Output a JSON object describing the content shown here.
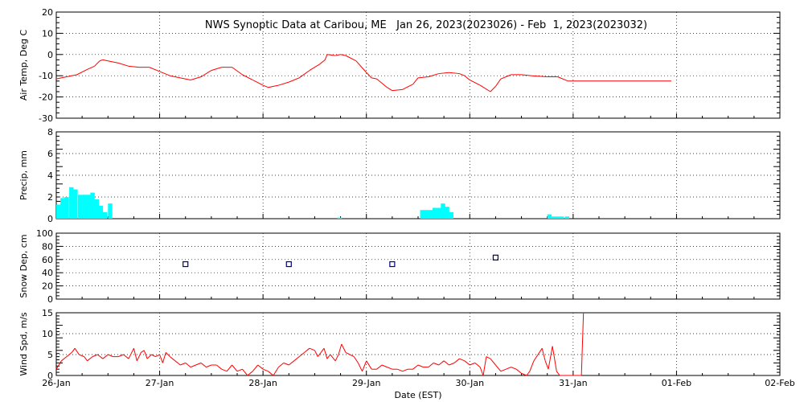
{
  "title": "NWS Synoptic Data at Caribou, ME   Jan 26, 2023(2023026) - Feb  1, 2023(2023032)",
  "xlabel": "Date (EST)",
  "x_ticks": [
    "26-Jan",
    "27-Jan",
    "28-Jan",
    "29-Jan",
    "30-Jan",
    "31-Jan",
    "01-Feb",
    "02-Feb"
  ],
  "colors": {
    "temp": "#ff0000",
    "precip": "#00ffff",
    "snow": "#000080",
    "wind": "#ff0000",
    "grid": "#000000"
  },
  "chart_data": [
    {
      "type": "line",
      "ylabel": "Air Temp, Deg C",
      "ylim": [
        -30,
        20
      ],
      "y_ticks": [
        20,
        10,
        0,
        -10,
        -20,
        -30
      ],
      "x_unit": "days since 26-Jan 00:00 EST",
      "points": [
        [
          0.0,
          -11.5
        ],
        [
          0.1,
          -10.5
        ],
        [
          0.2,
          -9.5
        ],
        [
          0.3,
          -7.0
        ],
        [
          0.37,
          -5.5
        ],
        [
          0.42,
          -3.0
        ],
        [
          0.45,
          -2.5
        ],
        [
          0.5,
          -3.0
        ],
        [
          0.6,
          -4.0
        ],
        [
          0.7,
          -5.5
        ],
        [
          0.8,
          -6.0
        ],
        [
          0.9,
          -6.0
        ],
        [
          1.0,
          -8.0
        ],
        [
          1.1,
          -10.0
        ],
        [
          1.2,
          -11.0
        ],
        [
          1.3,
          -12.0
        ],
        [
          1.4,
          -10.5
        ],
        [
          1.5,
          -7.5
        ],
        [
          1.6,
          -6.0
        ],
        [
          1.7,
          -6.0
        ],
        [
          1.8,
          -9.5
        ],
        [
          1.9,
          -12.0
        ],
        [
          2.0,
          -14.5
        ],
        [
          2.05,
          -15.5
        ],
        [
          2.1,
          -15.0
        ],
        [
          2.15,
          -14.5
        ],
        [
          2.25,
          -13.0
        ],
        [
          2.35,
          -11.0
        ],
        [
          2.45,
          -7.5
        ],
        [
          2.55,
          -4.5
        ],
        [
          2.6,
          -2.5
        ],
        [
          2.62,
          0.0
        ],
        [
          2.7,
          -0.5
        ],
        [
          2.75,
          0.0
        ],
        [
          2.8,
          -0.5
        ],
        [
          2.9,
          -3.0
        ],
        [
          3.0,
          -8.5
        ],
        [
          3.05,
          -11.0
        ],
        [
          3.1,
          -11.5
        ],
        [
          3.2,
          -15.5
        ],
        [
          3.25,
          -17.0
        ],
        [
          3.35,
          -16.5
        ],
        [
          3.45,
          -14.0
        ],
        [
          3.5,
          -11.0
        ],
        [
          3.6,
          -10.5
        ],
        [
          3.7,
          -9.0
        ],
        [
          3.8,
          -8.5
        ],
        [
          3.9,
          -9.0
        ],
        [
          3.95,
          -10.0
        ],
        [
          4.0,
          -12.0
        ],
        [
          4.1,
          -14.5
        ],
        [
          4.2,
          -17.5
        ],
        [
          4.25,
          -15.0
        ],
        [
          4.3,
          -11.5
        ],
        [
          4.4,
          -9.5
        ],
        [
          4.5,
          -9.5
        ],
        [
          4.6,
          -10.0
        ],
        [
          4.75,
          -10.5
        ],
        [
          4.85,
          -10.5
        ],
        [
          4.95,
          -12.5
        ],
        [
          5.95,
          -12.5
        ]
      ]
    },
    {
      "type": "bar",
      "ylabel": "Precip, mm",
      "ylim": [
        0,
        8
      ],
      "y_ticks": [
        8,
        6,
        4,
        2,
        0
      ],
      "x_unit": "days since 26-Jan 00:00 EST",
      "bar_width_days": 0.042,
      "bars": [
        [
          0.0,
          1.3
        ],
        [
          0.04,
          1.9
        ],
        [
          0.08,
          2.0
        ],
        [
          0.125,
          2.9
        ],
        [
          0.165,
          2.7
        ],
        [
          0.21,
          2.2
        ],
        [
          0.25,
          2.2
        ],
        [
          0.29,
          2.2
        ],
        [
          0.33,
          2.4
        ],
        [
          0.37,
          1.8
        ],
        [
          0.41,
          1.2
        ],
        [
          0.45,
          0.6
        ],
        [
          0.5,
          1.4
        ],
        [
          2.72,
          0.1
        ],
        [
          3.52,
          0.8
        ],
        [
          3.56,
          0.8
        ],
        [
          3.6,
          0.8
        ],
        [
          3.64,
          1.0
        ],
        [
          3.68,
          1.0
        ],
        [
          3.72,
          1.4
        ],
        [
          3.76,
          1.1
        ],
        [
          3.8,
          0.6
        ],
        [
          4.75,
          0.4
        ],
        [
          4.79,
          0.2
        ],
        [
          4.83,
          0.2
        ],
        [
          4.87,
          0.2
        ],
        [
          4.92,
          0.2
        ]
      ]
    },
    {
      "type": "scatter",
      "ylabel": "Snow Dep, cm",
      "ylim": [
        0,
        100
      ],
      "y_ticks": [
        100,
        80,
        60,
        40,
        20,
        0
      ],
      "x_unit": "days since 26-Jan 00:00 EST",
      "points": [
        [
          1.25,
          53
        ],
        [
          2.25,
          53
        ],
        [
          3.25,
          53
        ],
        [
          4.25,
          63
        ]
      ]
    },
    {
      "type": "line",
      "ylabel": "Wind Spd, m/s",
      "ylim": [
        0,
        15
      ],
      "y_ticks": [
        15,
        10,
        5,
        0
      ],
      "x_unit": "days since 26-Jan 00:00 EST",
      "points": [
        [
          0.0,
          1.5
        ],
        [
          0.05,
          3.5
        ],
        [
          0.1,
          4.5
        ],
        [
          0.15,
          5.5
        ],
        [
          0.18,
          6.5
        ],
        [
          0.22,
          5.0
        ],
        [
          0.27,
          4.5
        ],
        [
          0.3,
          3.5
        ],
        [
          0.35,
          4.5
        ],
        [
          0.4,
          5.0
        ],
        [
          0.45,
          4.0
        ],
        [
          0.5,
          5.0
        ],
        [
          0.55,
          4.5
        ],
        [
          0.6,
          4.5
        ],
        [
          0.65,
          5.0
        ],
        [
          0.7,
          4.0
        ],
        [
          0.75,
          6.5
        ],
        [
          0.78,
          3.5
        ],
        [
          0.82,
          5.5
        ],
        [
          0.85,
          6.0
        ],
        [
          0.88,
          4.0
        ],
        [
          0.92,
          5.0
        ],
        [
          0.96,
          4.5
        ],
        [
          1.0,
          5.0
        ],
        [
          1.03,
          3.0
        ],
        [
          1.06,
          5.5
        ],
        [
          1.1,
          4.5
        ],
        [
          1.15,
          3.5
        ],
        [
          1.2,
          2.5
        ],
        [
          1.25,
          3.0
        ],
        [
          1.3,
          2.0
        ],
        [
          1.35,
          2.5
        ],
        [
          1.4,
          3.0
        ],
        [
          1.45,
          2.0
        ],
        [
          1.5,
          2.5
        ],
        [
          1.55,
          2.5
        ],
        [
          1.6,
          1.5
        ],
        [
          1.65,
          1.0
        ],
        [
          1.7,
          2.5
        ],
        [
          1.75,
          1.0
        ],
        [
          1.8,
          1.5
        ],
        [
          1.85,
          0.0
        ],
        [
          1.9,
          1.0
        ],
        [
          1.95,
          2.5
        ],
        [
          2.0,
          1.5
        ],
        [
          2.05,
          1.0
        ],
        [
          2.1,
          0.0
        ],
        [
          2.15,
          2.0
        ],
        [
          2.2,
          3.0
        ],
        [
          2.25,
          2.5
        ],
        [
          2.3,
          3.5
        ],
        [
          2.35,
          4.5
        ],
        [
          2.4,
          5.5
        ],
        [
          2.45,
          6.5
        ],
        [
          2.5,
          6.0
        ],
        [
          2.53,
          4.5
        ],
        [
          2.56,
          5.5
        ],
        [
          2.59,
          6.5
        ],
        [
          2.62,
          4.0
        ],
        [
          2.65,
          5.0
        ],
        [
          2.7,
          3.5
        ],
        [
          2.73,
          5.0
        ],
        [
          2.76,
          7.5
        ],
        [
          2.8,
          5.5
        ],
        [
          2.84,
          5.0
        ],
        [
          2.88,
          4.5
        ],
        [
          2.92,
          3.0
        ],
        [
          2.96,
          1.0
        ],
        [
          3.0,
          3.5
        ],
        [
          3.05,
          1.5
        ],
        [
          3.1,
          1.5
        ],
        [
          3.15,
          2.5
        ],
        [
          3.2,
          2.0
        ],
        [
          3.25,
          1.5
        ],
        [
          3.3,
          1.5
        ],
        [
          3.35,
          1.0
        ],
        [
          3.4,
          1.5
        ],
        [
          3.45,
          1.5
        ],
        [
          3.5,
          2.5
        ],
        [
          3.55,
          2.0
        ],
        [
          3.6,
          2.0
        ],
        [
          3.65,
          3.0
        ],
        [
          3.7,
          2.5
        ],
        [
          3.75,
          3.5
        ],
        [
          3.8,
          2.5
        ],
        [
          3.85,
          3.0
        ],
        [
          3.9,
          4.0
        ],
        [
          3.95,
          3.5
        ],
        [
          4.0,
          2.5
        ],
        [
          4.05,
          3.0
        ],
        [
          4.1,
          2.0
        ],
        [
          4.13,
          0.0
        ],
        [
          4.16,
          4.5
        ],
        [
          4.2,
          4.0
        ],
        [
          4.25,
          2.5
        ],
        [
          4.3,
          1.0
        ],
        [
          4.35,
          1.5
        ],
        [
          4.4,
          2.0
        ],
        [
          4.45,
          1.5
        ],
        [
          4.5,
          0.5
        ],
        [
          4.55,
          0.0
        ],
        [
          4.58,
          1.0
        ],
        [
          4.62,
          3.5
        ],
        [
          4.66,
          5.0
        ],
        [
          4.7,
          6.5
        ],
        [
          4.73,
          3.5
        ],
        [
          4.76,
          1.5
        ],
        [
          4.8,
          7.0
        ],
        [
          4.84,
          1.0
        ],
        [
          4.87,
          0.0
        ],
        [
          5.08,
          0.0
        ],
        [
          5.1,
          15.0
        ]
      ]
    }
  ]
}
